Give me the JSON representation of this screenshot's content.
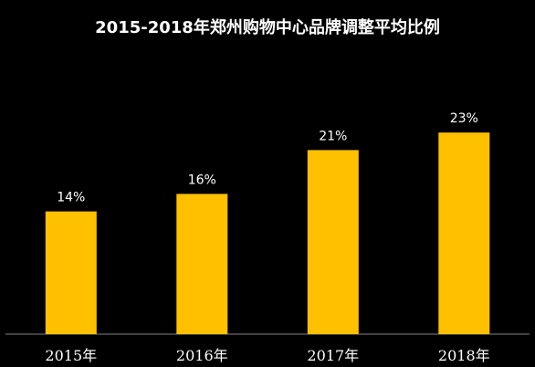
{
  "chart_data": {
    "type": "bar",
    "title": "2015-2018年郑州购物中心品牌调整平均比例",
    "categories": [
      "2015年",
      "2016年",
      "2017年",
      "2018年"
    ],
    "values": [
      14,
      16,
      21,
      23
    ],
    "value_labels": [
      "14%",
      "16%",
      "21%",
      "23%"
    ],
    "xlabel": "",
    "ylabel": "",
    "ylim": [
      0,
      38
    ],
    "grid": false,
    "legend": "none"
  },
  "colors": {
    "background": "#000000",
    "bar": "#FFC000",
    "text": "#ffffff",
    "axis": "#7f7f7f"
  }
}
